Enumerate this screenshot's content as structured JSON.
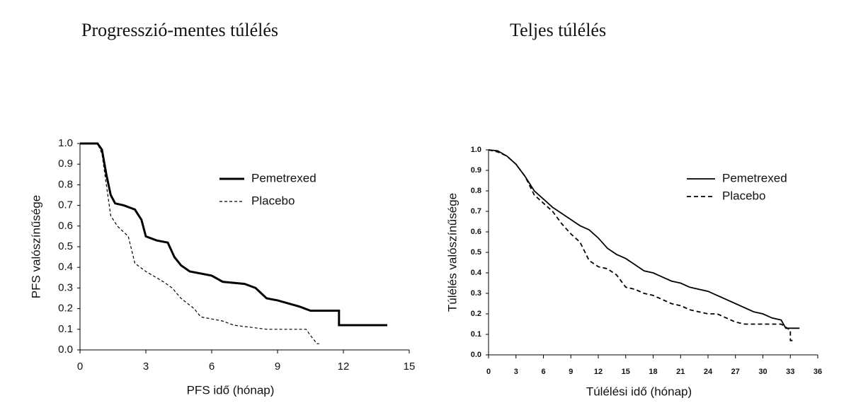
{
  "chart_data": [
    {
      "type": "line",
      "title": "Progresszió-mentes túlélés",
      "x_label": "PFS idő (hónap)",
      "y_label": "PFS valószínűsége",
      "xlim": [
        0,
        15
      ],
      "xticks": [
        0,
        3,
        6,
        9,
        12,
        15
      ],
      "ylim": [
        0,
        1
      ],
      "yticks": [
        {
          "value": 0,
          "label": "0.0"
        },
        0.1,
        0.2,
        0.3,
        0.4,
        0.5,
        0.6,
        0.7,
        0.8,
        0.9,
        {
          "value": 1,
          "label": "1.0"
        }
      ],
      "series": [
        {
          "name": "Pemetrexed",
          "color": "#000000",
          "dashed": false,
          "line_width": 3,
          "x": [
            0,
            0.8,
            1.0,
            1.2,
            1.4,
            1.6,
            2.0,
            2.5,
            2.8,
            3.0,
            3.5,
            4.0,
            4.3,
            4.6,
            5.0,
            6.0,
            6.5,
            7.5,
            8.0,
            8.5,
            9.0,
            10.0,
            10.5,
            11.8,
            11.8,
            14.0
          ],
          "values": [
            1.0,
            1.0,
            0.97,
            0.85,
            0.75,
            0.71,
            0.7,
            0.68,
            0.63,
            0.55,
            0.53,
            0.52,
            0.45,
            0.41,
            0.38,
            0.36,
            0.33,
            0.32,
            0.3,
            0.25,
            0.24,
            0.21,
            0.19,
            0.19,
            0.12,
            0.12
          ]
        },
        {
          "name": "Placebo",
          "color": "#000000",
          "dashed": true,
          "line_width": 1.2,
          "x": [
            0,
            0.8,
            1.0,
            1.2,
            1.4,
            1.7,
            2.2,
            2.5,
            3.0,
            3.8,
            4.2,
            4.6,
            5.2,
            5.5,
            6.5,
            7.0,
            8.5,
            10.3,
            10.5,
            10.8,
            10.9
          ],
          "values": [
            1.0,
            1.0,
            0.95,
            0.8,
            0.65,
            0.6,
            0.55,
            0.42,
            0.38,
            0.33,
            0.3,
            0.25,
            0.2,
            0.16,
            0.14,
            0.12,
            0.1,
            0.1,
            0.07,
            0.03,
            0.03
          ]
        }
      ]
    },
    {
      "type": "line",
      "title": "Teljes túlélés",
      "x_label": "Túlélési idő (hónap)",
      "y_label": "Túlélés valószínűsége",
      "xlim": [
        0,
        36
      ],
      "xticks": [
        0,
        3,
        6,
        9,
        12,
        15,
        18,
        21,
        24,
        27,
        30,
        33,
        36
      ],
      "ylim": [
        0,
        1
      ],
      "yticks": [
        {
          "value": 0,
          "label": "0.0"
        },
        0.1,
        0.2,
        0.3,
        0.4,
        0.5,
        0.6,
        0.7,
        0.8,
        0.9,
        {
          "value": 1,
          "label": "1.0"
        }
      ],
      "series": [
        {
          "name": "Pemetrexed",
          "color": "#000000",
          "dashed": false,
          "line_width": 1.8,
          "x": [
            0,
            1,
            2,
            3,
            4,
            5,
            6,
            7,
            8,
            9,
            10,
            11,
            12,
            13,
            14,
            15,
            16,
            17,
            18,
            19,
            20,
            21,
            22,
            23,
            24,
            25,
            26,
            27,
            28,
            29,
            30,
            31,
            32,
            32.5,
            34
          ],
          "values": [
            1.0,
            0.995,
            0.97,
            0.93,
            0.87,
            0.8,
            0.76,
            0.72,
            0.69,
            0.66,
            0.63,
            0.61,
            0.57,
            0.52,
            0.49,
            0.47,
            0.44,
            0.41,
            0.4,
            0.38,
            0.36,
            0.35,
            0.33,
            0.32,
            0.31,
            0.29,
            0.27,
            0.25,
            0.23,
            0.21,
            0.2,
            0.18,
            0.17,
            0.13,
            0.13
          ]
        },
        {
          "name": "Placebo",
          "color": "#000000",
          "dashed": true,
          "line_width": 1.8,
          "x": [
            0,
            1,
            2,
            3,
            4,
            5,
            6,
            7,
            8,
            9,
            10,
            11,
            12,
            13,
            14,
            15,
            16,
            17,
            18,
            19,
            20,
            21,
            22,
            23,
            24,
            25,
            26,
            27,
            28,
            30,
            32,
            33,
            33,
            33.5
          ],
          "values": [
            1.0,
            0.99,
            0.97,
            0.93,
            0.87,
            0.78,
            0.74,
            0.7,
            0.64,
            0.59,
            0.55,
            0.46,
            0.43,
            0.42,
            0.39,
            0.33,
            0.32,
            0.3,
            0.29,
            0.27,
            0.25,
            0.24,
            0.22,
            0.21,
            0.2,
            0.2,
            0.18,
            0.16,
            0.15,
            0.15,
            0.15,
            0.12,
            0.07,
            0.07
          ]
        }
      ]
    }
  ]
}
